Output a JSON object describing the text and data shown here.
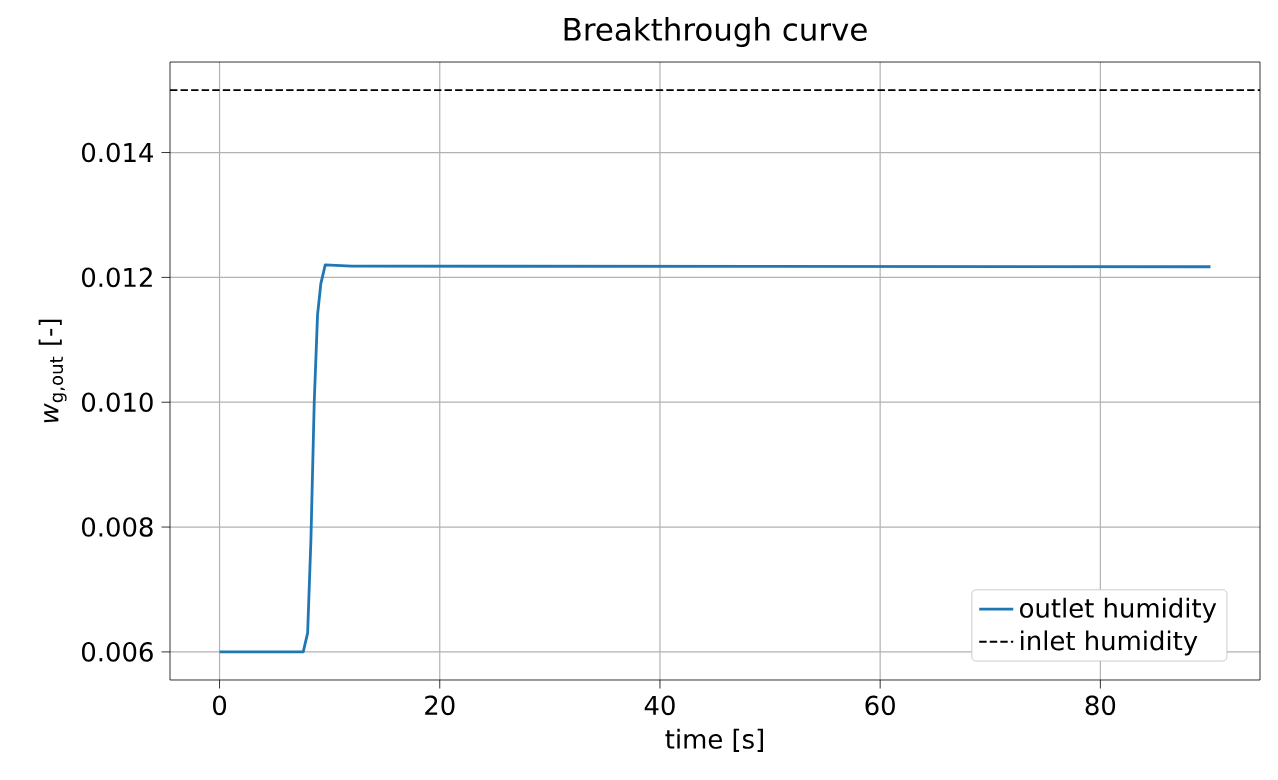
{
  "chart_data": {
    "type": "line",
    "title": "Breakthrough curve",
    "xlabel": "time [s]",
    "ylabel": "*w*$_{g,out}$ [-]",
    "series": [
      {
        "name": "outlet humidity",
        "color": "#1f77b4",
        "x": [
          0,
          7.6,
          8.0,
          8.3,
          8.6,
          8.9,
          9.2,
          9.6,
          12,
          90
        ],
        "values": [
          0.006,
          0.006,
          0.0063,
          0.0078,
          0.01,
          0.0114,
          0.0119,
          0.0122,
          0.01218,
          0.01217
        ]
      }
    ],
    "ref_lines": [
      {
        "axis": "y",
        "value": 0.015,
        "label": "inlet humidity",
        "color": "#000000",
        "line_style": "dashed"
      }
    ],
    "xlim": [
      -4.5,
      94.5
    ],
    "ylim": [
      0.00555,
      0.01545
    ],
    "xticks": [
      0,
      20,
      40,
      60,
      80
    ],
    "yticks": [
      0.006,
      0.008,
      {
        "value": 0.01,
        "label": "0.010"
      },
      0.012,
      0.014
    ],
    "grid": true,
    "legend": "bottom right",
    "marker": "none",
    "line_style": "solid"
  }
}
